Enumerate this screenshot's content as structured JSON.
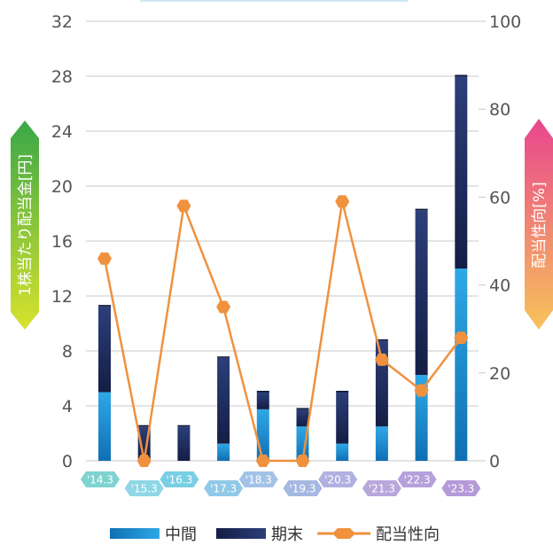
{
  "chart_data": {
    "type": "bar",
    "categories": [
      "'14.3",
      "'15.3",
      "'16.3",
      "'17.3",
      "'18.3",
      "'19.3",
      "'20.3",
      "'21.3",
      "'22.3",
      "'23.3"
    ],
    "series": [
      {
        "name": "中間",
        "type": "bar",
        "stack": "dividend",
        "axis": "left",
        "color": "#1591d3",
        "values": [
          5.0,
          0,
          0,
          1.25,
          3.75,
          2.5,
          1.25,
          2.5,
          6.25,
          14.0
        ]
      },
      {
        "name": "期末",
        "type": "bar",
        "stack": "dividend",
        "axis": "left",
        "color": "#1d2d60",
        "values": [
          6.25,
          2.5,
          2.5,
          6.25,
          1.25,
          1.25,
          3.75,
          6.25,
          12.0,
          14.0
        ]
      },
      {
        "name": "配当性向",
        "type": "line",
        "axis": "right",
        "color": "#f0913e",
        "values": [
          46,
          0,
          58,
          35,
          0,
          0,
          59,
          23,
          16,
          28
        ]
      }
    ],
    "y_left": {
      "label": "1株当たり配当金[円]",
      "min": 0,
      "max": 32,
      "ticks": [
        "0",
        "4",
        "8",
        "12",
        "16",
        "20",
        "24",
        "28",
        "32"
      ]
    },
    "y_right": {
      "label": "配当性向[%]",
      "min": 0,
      "max": 100,
      "ticks": [
        "0",
        "20",
        "40",
        "60",
        "80",
        "100"
      ]
    },
    "grid": true,
    "legend_position": "bottom"
  },
  "colors": {
    "label_badges": [
      "#7ed3d0",
      "#8fd6e6",
      "#78cfe3",
      "#90c9e8",
      "#a3c3e6",
      "#a5b8e2",
      "#b0b1e0",
      "#b7a8dc",
      "#b5a0db",
      "#b59ad9"
    ]
  }
}
